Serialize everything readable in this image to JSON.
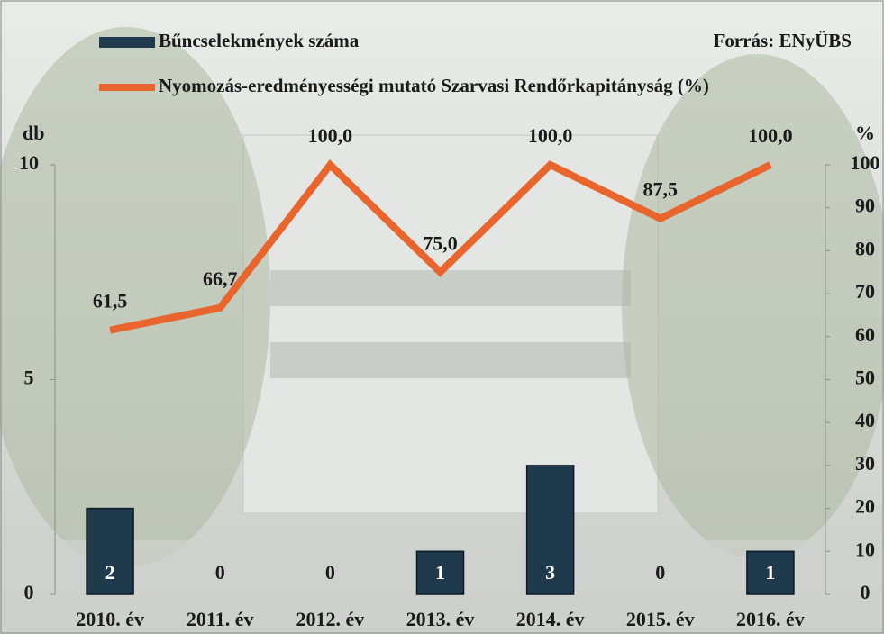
{
  "chart_data": {
    "type": "bar",
    "source": "Forrás: ENyÜBS",
    "y_label": "db",
    "y2_label": "%",
    "categories": [
      "2010. év",
      "2011. év",
      "2012. év",
      "2013. év",
      "2014. év",
      "2015. év",
      "2016. év"
    ],
    "series": [
      {
        "name": "Bűncselekmények száma",
        "type": "bar",
        "color": "#1e3a4c",
        "values": [
          2,
          0,
          0,
          1,
          3,
          0,
          1
        ]
      },
      {
        "name": "Nyomozás-eredményességi mutató Szarvasi Rendőrkapitányság (%)",
        "type": "line",
        "axis": "y2",
        "color": "#e8662e",
        "values": [
          61.5,
          66.7,
          100,
          75,
          100,
          87.5,
          100
        ],
        "value_labels": [
          "61,5",
          "66,7",
          "100,0",
          "75,0",
          "100,0",
          "87,5",
          "100,0"
        ]
      }
    ],
    "ylim": [
      0,
      10
    ],
    "yticks": [
      0,
      5,
      10
    ],
    "y2lim": [
      0,
      100
    ],
    "y2ticks": [
      0,
      10,
      20,
      30,
      40,
      50,
      60,
      70,
      80,
      90,
      100
    ]
  }
}
